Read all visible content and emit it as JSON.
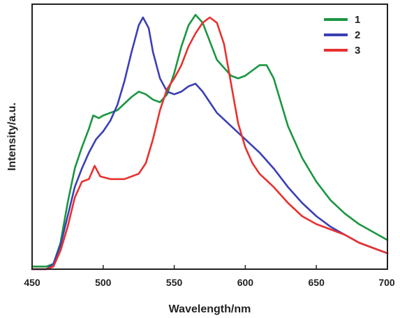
{
  "chart_data": {
    "type": "line",
    "title": "",
    "xlabel": "Wavelength/nm",
    "ylabel": "Intensity/a.u.",
    "xlim": [
      450,
      700
    ],
    "ylim": [
      0,
      1
    ],
    "xticks": [
      450,
      500,
      550,
      600,
      650,
      700
    ],
    "x_tick_labels": [
      "450",
      "500",
      "550",
      "600",
      "650",
      "700"
    ],
    "y_tick_labels_shown": false,
    "grid": false,
    "legend_position": "top-right",
    "series": [
      {
        "name": "1",
        "color": "#1a9641",
        "points": [
          [
            450,
            0.01
          ],
          [
            460,
            0.01
          ],
          [
            465,
            0.02
          ],
          [
            470,
            0.1
          ],
          [
            475,
            0.25
          ],
          [
            480,
            0.38
          ],
          [
            485,
            0.46
          ],
          [
            490,
            0.53
          ],
          [
            493,
            0.58
          ],
          [
            497,
            0.57
          ],
          [
            500,
            0.58
          ],
          [
            510,
            0.6
          ],
          [
            520,
            0.65
          ],
          [
            525,
            0.67
          ],
          [
            530,
            0.66
          ],
          [
            535,
            0.64
          ],
          [
            540,
            0.63
          ],
          [
            545,
            0.66
          ],
          [
            550,
            0.74
          ],
          [
            555,
            0.84
          ],
          [
            560,
            0.92
          ],
          [
            565,
            0.96
          ],
          [
            570,
            0.93
          ],
          [
            575,
            0.86
          ],
          [
            580,
            0.79
          ],
          [
            585,
            0.76
          ],
          [
            590,
            0.73
          ],
          [
            595,
            0.72
          ],
          [
            600,
            0.73
          ],
          [
            605,
            0.75
          ],
          [
            610,
            0.77
          ],
          [
            615,
            0.77
          ],
          [
            620,
            0.72
          ],
          [
            625,
            0.63
          ],
          [
            630,
            0.54
          ],
          [
            640,
            0.42
          ],
          [
            650,
            0.33
          ],
          [
            660,
            0.26
          ],
          [
            670,
            0.21
          ],
          [
            680,
            0.17
          ],
          [
            690,
            0.14
          ],
          [
            700,
            0.11
          ]
        ]
      },
      {
        "name": "2",
        "color": "#3b3fb6",
        "points": [
          [
            450,
            0.0
          ],
          [
            460,
            0.0
          ],
          [
            465,
            0.02
          ],
          [
            470,
            0.09
          ],
          [
            475,
            0.2
          ],
          [
            480,
            0.31
          ],
          [
            485,
            0.38
          ],
          [
            490,
            0.44
          ],
          [
            495,
            0.49
          ],
          [
            500,
            0.52
          ],
          [
            505,
            0.56
          ],
          [
            510,
            0.62
          ],
          [
            515,
            0.71
          ],
          [
            520,
            0.82
          ],
          [
            525,
            0.92
          ],
          [
            528,
            0.95
          ],
          [
            532,
            0.91
          ],
          [
            535,
            0.82
          ],
          [
            540,
            0.72
          ],
          [
            545,
            0.67
          ],
          [
            550,
            0.66
          ],
          [
            555,
            0.67
          ],
          [
            560,
            0.69
          ],
          [
            565,
            0.7
          ],
          [
            570,
            0.67
          ],
          [
            575,
            0.63
          ],
          [
            580,
            0.59
          ],
          [
            590,
            0.54
          ],
          [
            600,
            0.49
          ],
          [
            610,
            0.44
          ],
          [
            620,
            0.38
          ],
          [
            630,
            0.31
          ],
          [
            640,
            0.25
          ],
          [
            650,
            0.2
          ],
          [
            660,
            0.16
          ],
          [
            670,
            0.13
          ],
          [
            680,
            0.1
          ],
          [
            690,
            0.08
          ],
          [
            700,
            0.06
          ]
        ]
      },
      {
        "name": "3",
        "color": "#e8312f",
        "points": [
          [
            450,
            0.0
          ],
          [
            460,
            0.0
          ],
          [
            465,
            0.01
          ],
          [
            470,
            0.07
          ],
          [
            475,
            0.16
          ],
          [
            480,
            0.27
          ],
          [
            485,
            0.33
          ],
          [
            490,
            0.34
          ],
          [
            494,
            0.39
          ],
          [
            498,
            0.35
          ],
          [
            505,
            0.34
          ],
          [
            515,
            0.34
          ],
          [
            525,
            0.36
          ],
          [
            530,
            0.4
          ],
          [
            535,
            0.49
          ],
          [
            540,
            0.6
          ],
          [
            545,
            0.68
          ],
          [
            550,
            0.72
          ],
          [
            555,
            0.77
          ],
          [
            560,
            0.84
          ],
          [
            565,
            0.89
          ],
          [
            570,
            0.93
          ],
          [
            575,
            0.95
          ],
          [
            580,
            0.93
          ],
          [
            585,
            0.85
          ],
          [
            590,
            0.7
          ],
          [
            595,
            0.55
          ],
          [
            600,
            0.46
          ],
          [
            605,
            0.4
          ],
          [
            610,
            0.36
          ],
          [
            620,
            0.31
          ],
          [
            630,
            0.25
          ],
          [
            640,
            0.2
          ],
          [
            650,
            0.17
          ],
          [
            660,
            0.15
          ],
          [
            670,
            0.13
          ],
          [
            680,
            0.1
          ],
          [
            690,
            0.08
          ],
          [
            700,
            0.06
          ]
        ]
      }
    ]
  }
}
